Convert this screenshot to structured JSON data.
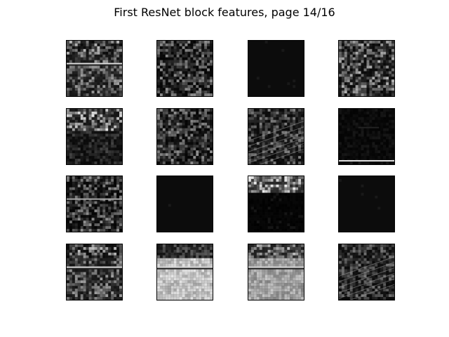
{
  "figure": {
    "title": "First ResNet block features, page 14/16"
  },
  "panels": [
    {
      "id": 1,
      "tone": "dark-scene",
      "brightness": 0.45
    },
    {
      "id": 2,
      "tone": "sparse-texture",
      "brightness": 0.25
    },
    {
      "id": 3,
      "tone": "black",
      "brightness": 0.02
    },
    {
      "id": 4,
      "tone": "noisy-texture",
      "brightness": 0.35
    },
    {
      "id": 5,
      "tone": "bright-top",
      "brightness": 0.25
    },
    {
      "id": 6,
      "tone": "sparse-texture",
      "brightness": 0.12
    },
    {
      "id": 7,
      "tone": "diagonal-edges",
      "brightness": 0.22
    },
    {
      "id": 8,
      "tone": "near-black-line",
      "brightness": 0.06
    },
    {
      "id": 9,
      "tone": "faint-line",
      "brightness": 0.1
    },
    {
      "id": 10,
      "tone": "black",
      "brightness": 0.02
    },
    {
      "id": 11,
      "tone": "bright-top-only",
      "brightness": 0.12
    },
    {
      "id": 12,
      "tone": "black",
      "brightness": 0.02
    },
    {
      "id": 13,
      "tone": "dark-scene",
      "brightness": 0.35
    },
    {
      "id": 14,
      "tone": "light-scene",
      "brightness": 0.65
    },
    {
      "id": 15,
      "tone": "gray-scene",
      "brightness": 0.5
    },
    {
      "id": 16,
      "tone": "dark-edges",
      "brightness": 0.28
    }
  ]
}
